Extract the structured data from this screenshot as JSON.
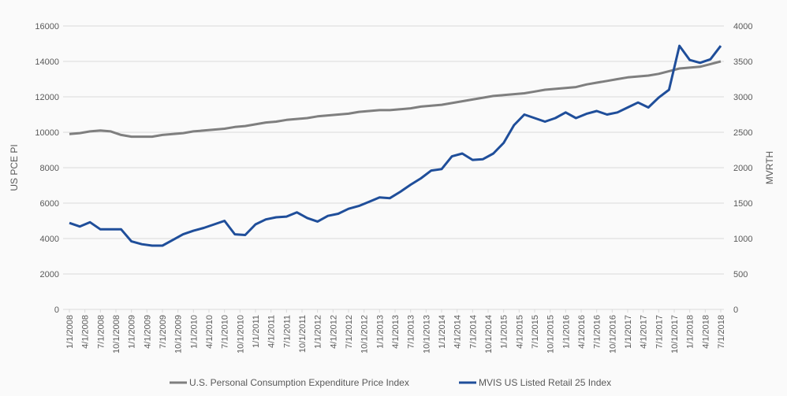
{
  "chart_data": {
    "type": "line",
    "title": "",
    "xlabel": "",
    "ylabel_left": "US PCE PI",
    "ylabel_right": "MVRTH",
    "ylim_left": [
      0,
      16000
    ],
    "ylim_right": [
      0,
      4000
    ],
    "yticks_left": [
      "0",
      "2000",
      "4000",
      "6000",
      "8000",
      "10000",
      "12000",
      "14000",
      "16000"
    ],
    "yticks_right": [
      "0",
      "500",
      "1000",
      "1500",
      "2000",
      "2500",
      "3000",
      "3500",
      "4000"
    ],
    "grid": true,
    "legend_position": "bottom",
    "x_ticks": [
      "1/1/2008",
      "4/1/2008",
      "7/1/2008",
      "10/1/2008",
      "1/1/2009",
      "4/1/2009",
      "7/1/2009",
      "10/1/2009",
      "1/1/2010",
      "4/1/2010",
      "7/1/2010",
      "10/1/2010",
      "1/1/2011",
      "4/1/2011",
      "7/1/2011",
      "10/1/2011",
      "1/1/2012",
      "4/1/2012",
      "7/1/2012",
      "10/1/2012",
      "1/1/2013",
      "4/1/2013",
      "7/1/2013",
      "10/1/2013",
      "1/1/2014",
      "4/1/2014",
      "7/1/2014",
      "10/1/2014",
      "1/1/2015",
      "4/1/2015",
      "7/1/2015",
      "10/1/2015",
      "1/1/2016",
      "4/1/2016",
      "7/1/2016",
      "10/1/2016",
      "1/1/2017",
      "4/1/2017",
      "7/1/2017",
      "10/1/2017",
      "1/1/2018",
      "4/1/2018",
      "7/1/2018"
    ],
    "x_months_from_start_step": 2,
    "series": [
      {
        "name": "U.S. Personal Consumption Expenditure Price Index",
        "axis": "left",
        "color": "#7f7f7f",
        "values": [
          9900,
          9950,
          10050,
          10100,
          10050,
          9850,
          9750,
          9750,
          9750,
          9850,
          9900,
          9950,
          10050,
          10100,
          10150,
          10200,
          10300,
          10350,
          10450,
          10550,
          10600,
          10700,
          10750,
          10800,
          10900,
          10950,
          11000,
          11050,
          11150,
          11200,
          11250,
          11250,
          11300,
          11350,
          11450,
          11500,
          11550,
          11650,
          11750,
          11850,
          11950,
          12050,
          12100,
          12150,
          12200,
          12300,
          12400,
          12450,
          12500,
          12550,
          12700,
          12800,
          12900,
          13000,
          13100,
          13150,
          13200,
          13300,
          13450,
          13600,
          13650,
          13700,
          13850,
          14000
        ]
      },
      {
        "name": "MVIS US Listed Retail 25 Index",
        "axis": "right",
        "color": "#1f4e9a",
        "values": [
          1220,
          1170,
          1230,
          1130,
          1130,
          1130,
          960,
          920,
          900,
          900,
          980,
          1060,
          1110,
          1150,
          1200,
          1250,
          1060,
          1050,
          1200,
          1270,
          1300,
          1310,
          1370,
          1290,
          1240,
          1320,
          1350,
          1420,
          1460,
          1520,
          1580,
          1570,
          1660,
          1760,
          1850,
          1960,
          1980,
          2160,
          2200,
          2110,
          2120,
          2200,
          2350,
          2600,
          2750,
          2700,
          2650,
          2700,
          2780,
          2700,
          2760,
          2800,
          2750,
          2780,
          2850,
          2920,
          2850,
          2990,
          3100,
          3720,
          3520,
          3480,
          3530,
          3720
        ]
      }
    ]
  },
  "legend": {
    "items": [
      {
        "label": "U.S. Personal Consumption Expenditure Price Index",
        "color": "#7f7f7f"
      },
      {
        "label": "MVIS US Listed Retail 25 Index",
        "color": "#1f4e9a"
      }
    ]
  }
}
